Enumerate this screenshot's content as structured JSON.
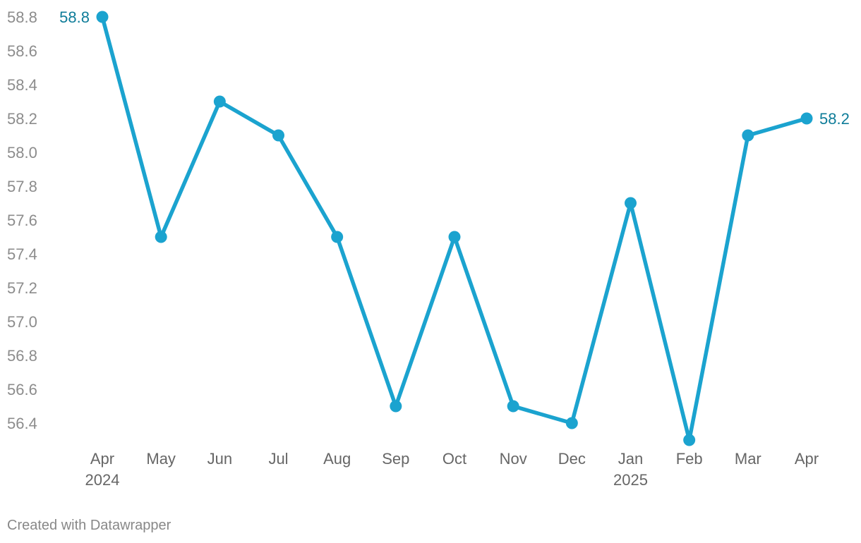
{
  "chart_data": {
    "type": "line",
    "title": "",
    "xlabel": "",
    "ylabel": "",
    "categories": [
      "Apr",
      "May",
      "Jun",
      "Jul",
      "Aug",
      "Sep",
      "Oct",
      "Nov",
      "Dec",
      "Jan",
      "Feb",
      "Mar",
      "Apr"
    ],
    "category_year_labels": {
      "0": "2024",
      "9": "2025"
    },
    "series": [
      {
        "values": [
          58.8,
          57.5,
          58.3,
          58.1,
          57.5,
          56.5,
          57.5,
          56.5,
          56.4,
          57.7,
          56.3,
          58.1,
          58.2
        ],
        "color": "#1ba3cf"
      }
    ],
    "ylim": [
      56.3,
      58.8
    ],
    "yticks": [
      56.4,
      56.6,
      56.8,
      57.0,
      57.2,
      57.4,
      57.6,
      57.8,
      58.0,
      58.2,
      58.4,
      58.6,
      58.8
    ],
    "grid": false,
    "legend": "none",
    "data_labels": [
      {
        "index": 0,
        "text": "58.8",
        "side": "left"
      },
      {
        "index": 12,
        "text": "58.2",
        "side": "right"
      }
    ],
    "label_color": "#0e7c99"
  },
  "footer": {
    "credit": "Created with Datawrapper"
  }
}
